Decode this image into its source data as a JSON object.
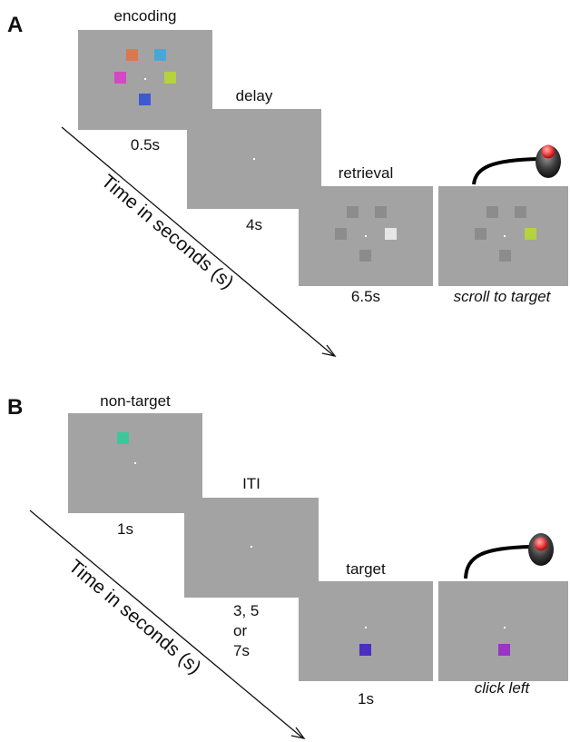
{
  "panel_a": {
    "letter": "A",
    "encoding_label": "encoding",
    "encoding_duration": "0.5s",
    "delay_label": "delay",
    "delay_duration": "4s",
    "retrieval_label": "retrieval",
    "retrieval_duration": "6.5s",
    "response_label": "scroll to target",
    "time_axis_label": "Time in seconds (s)",
    "colors": {
      "orange": "#d8794f",
      "cyan": "#4aa6d6",
      "magenta": "#d448c4",
      "lime": "#b4d33c",
      "blue": "#3e5ad0",
      "probe_gray": "#8c8c8c",
      "probe_highlight": "#e6e6e6",
      "target_lime": "#b4d33c"
    }
  },
  "panel_b": {
    "letter": "B",
    "nontarget_label": "non-target",
    "nontarget_duration": "1s",
    "iti_label": "ITI",
    "iti_duration_line1": "3, 5",
    "iti_duration_line2": "or",
    "iti_duration_line3": "7s",
    "target_label": "target",
    "target_duration": "1s",
    "response_label": "click left",
    "time_axis_label": "Time in seconds (s)",
    "colors": {
      "teal": "#3bc79a",
      "indigo": "#4a2fc0",
      "purple": "#9a34c4"
    }
  },
  "icons": {
    "mouse": "trackball-mouse-icon",
    "button": "red-button"
  }
}
